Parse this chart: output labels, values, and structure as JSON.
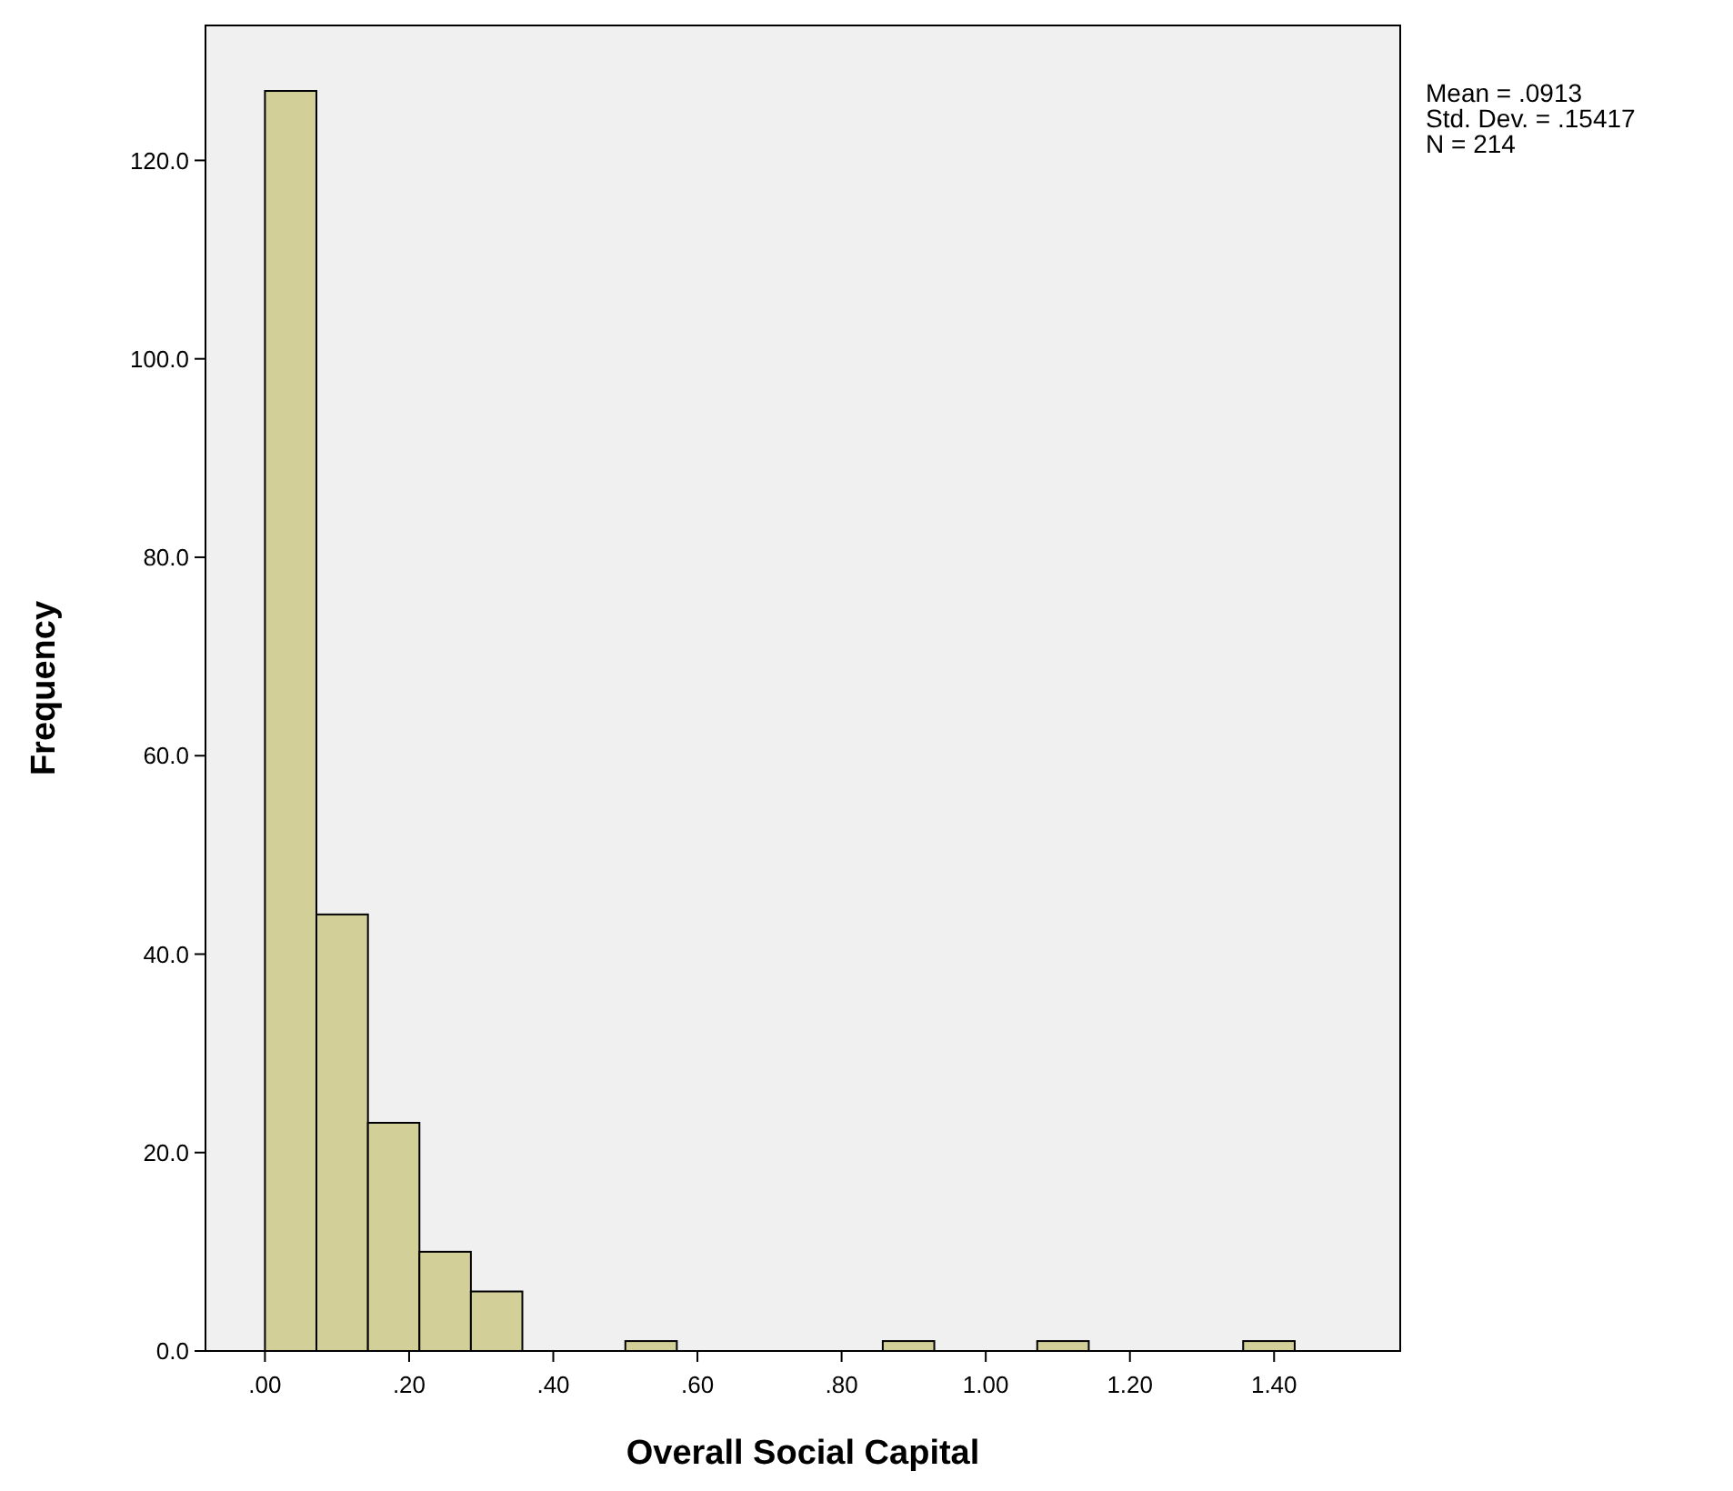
{
  "chart_data": {
    "type": "histogram",
    "xlabel": "Overall Social Capital",
    "ylabel": "Frequency",
    "bins": [
      0,
      0.0714,
      0.1429,
      0.2143,
      0.2857,
      0.3571,
      0.4286,
      0.5,
      0.5714,
      0.6429,
      0.7143,
      0.7857,
      0.8571,
      0.9286,
      1.0,
      1.0714,
      1.1429,
      1.2143,
      1.2857,
      1.3571,
      1.4286
    ],
    "values": [
      127,
      44,
      23,
      10,
      6,
      0,
      0,
      1,
      0,
      0,
      0,
      0,
      1,
      0,
      0,
      1,
      0,
      0,
      0,
      1
    ],
    "color": "#d3cf98",
    "xlim": [
      -0.0825,
      1.575
    ],
    "xticks": [
      {
        "value": 0,
        "label": ".00"
      },
      {
        "value": 0.2,
        "label": ".20"
      },
      {
        "value": 0.4,
        "label": ".40"
      },
      {
        "value": 0.6,
        "label": ".60"
      },
      {
        "value": 0.8,
        "label": ".80"
      },
      {
        "value": 1.0,
        "label": "1.00"
      },
      {
        "value": 1.2,
        "label": "1.20"
      },
      {
        "value": 1.4,
        "label": "1.40"
      }
    ],
    "ylim": [
      0,
      133.6
    ],
    "yticks": [
      {
        "value": 0,
        "label": "0.0"
      },
      {
        "value": 20,
        "label": "20.0"
      },
      {
        "value": 40,
        "label": "40.0"
      },
      {
        "value": 60,
        "label": "60.0"
      },
      {
        "value": 80,
        "label": "80.0"
      },
      {
        "value": 100,
        "label": "100.0"
      },
      {
        "value": 120,
        "label": "120.0"
      }
    ],
    "annotations": [
      "Mean = .0913",
      "Std. Dev. = .15417",
      "N = 214"
    ]
  }
}
